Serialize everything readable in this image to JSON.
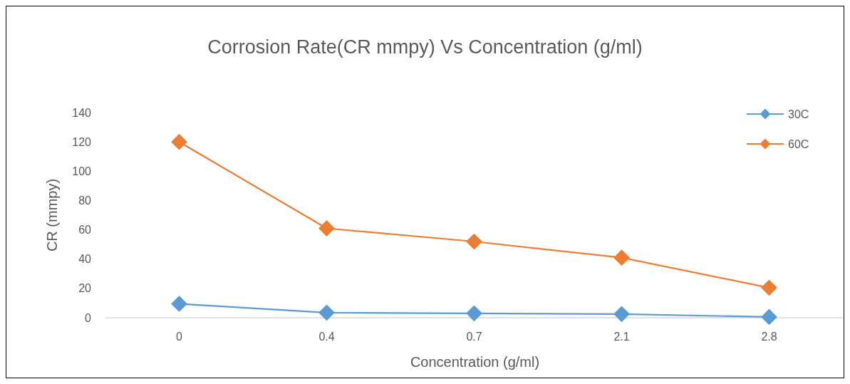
{
  "chart_data": {
    "type": "line",
    "title": "Corrosion Rate(CR mmpy) Vs Concentration (g/ml)",
    "xlabel": "Concentration (g/ml)",
    "ylabel": "CR (mmpy)",
    "categories": [
      "0",
      "0.4",
      "0.7",
      "2.1",
      "2.8"
    ],
    "series": [
      {
        "name": "30C",
        "color": "#5b9bd5",
        "values": [
          9.5,
          3.5,
          3,
          2.5,
          0.5
        ]
      },
      {
        "name": "60C",
        "color": "#ed7d31",
        "values": [
          120,
          61,
          52,
          41,
          20.5
        ]
      }
    ],
    "ylim": [
      0,
      140
    ],
    "yticks": [
      0,
      20,
      40,
      60,
      80,
      100,
      120,
      140
    ],
    "grid": false,
    "legend": "top right",
    "marker": "diamond",
    "line_style": "solid"
  }
}
